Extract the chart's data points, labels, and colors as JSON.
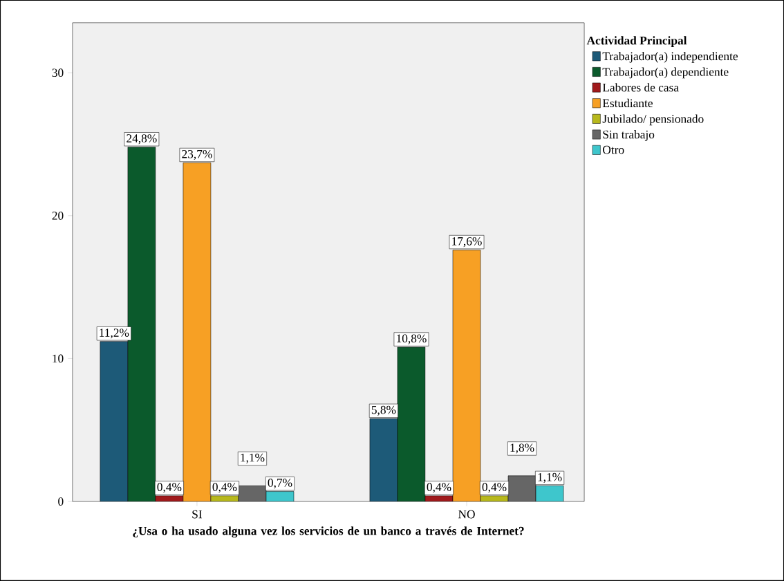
{
  "chart_data": {
    "type": "bar",
    "xlabel": "¿Usa o ha usado alguna vez los servicios de un banco a través de Internet?",
    "legend_title": "Actividad Principal",
    "legend": "right",
    "categories": [
      "SI",
      "NO"
    ],
    "ylim": [
      0,
      33.5
    ],
    "yticks": [
      0,
      10,
      20,
      30
    ],
    "series": [
      {
        "name": "Trabajador(a) independiente",
        "color": "#1d5a78",
        "values": [
          11.2,
          5.8
        ],
        "value_labels": [
          "11,2%",
          "5,8%"
        ]
      },
      {
        "name": "Trabajador(a) dependiente",
        "color": "#0b5a2c",
        "values": [
          24.8,
          10.8
        ],
        "value_labels": [
          "24,8%",
          "10,8%"
        ]
      },
      {
        "name": "Labores de casa",
        "color": "#a01a1c",
        "values": [
          0.4,
          0.4
        ],
        "value_labels": [
          "0,4%",
          "0,4%"
        ]
      },
      {
        "name": "Estudiante",
        "color": "#f7a024",
        "values": [
          23.7,
          17.6
        ],
        "value_labels": [
          "23,7%",
          "17,6%"
        ]
      },
      {
        "name": "Jubilado/ pensionado",
        "color": "#b7b81c",
        "values": [
          0.4,
          0.4
        ],
        "value_labels": [
          "0,4%",
          "0,4%"
        ]
      },
      {
        "name": "Sin trabajo",
        "color": "#666666",
        "values": [
          1.1,
          1.8
        ],
        "value_labels": [
          "1,1%",
          "1,8%"
        ]
      },
      {
        "name": "Otro",
        "color": "#3ec6cc",
        "values": [
          0.7,
          1.1
        ],
        "value_labels": [
          "0,7%",
          "1,1%"
        ]
      }
    ]
  }
}
